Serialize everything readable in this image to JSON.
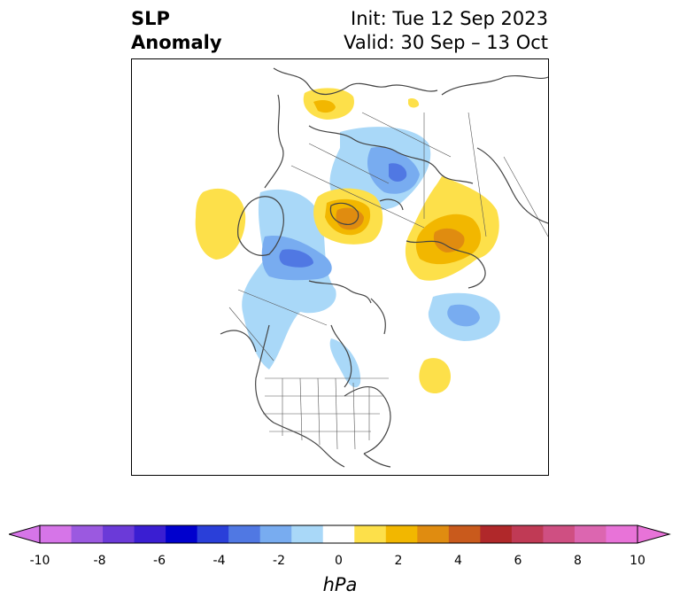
{
  "title": {
    "left_line1": "SLP",
    "left_line2": "Anomaly",
    "right_line1": "Init: Tue 12 Sep 2023",
    "right_line2": "Valid: 30 Sep – 13 Oct"
  },
  "colorbar": {
    "unit": "hPa",
    "ticks": [
      "-10",
      "-8",
      "-6",
      "-4",
      "-2",
      "0",
      "2",
      "4",
      "6",
      "8",
      "10"
    ],
    "tick_values": [
      -10,
      -8,
      -6,
      -4,
      -2,
      0,
      2,
      4,
      6,
      8,
      10
    ],
    "levels": [
      -10,
      -9,
      -8,
      -7,
      -6,
      -5,
      -4,
      -3,
      -2,
      -1,
      1,
      2,
      3,
      4,
      5,
      6,
      7,
      8,
      9,
      10
    ],
    "colors": [
      "#d675e8",
      "#9b59e0",
      "#6b3ad8",
      "#3a1ed2",
      "#0000cd",
      "#2a3fd9",
      "#5078e3",
      "#78acf0",
      "#a9d8f8",
      "#ffffff",
      "#fde04a",
      "#f2b700",
      "#e08c10",
      "#c95a1c",
      "#b0282a",
      "#c03a55",
      "#cf4f82",
      "#dc66b0",
      "#e873d8"
    ],
    "extend_low_color": "#d675e8",
    "extend_high_color": "#e873d8"
  },
  "anomalies": [
    {
      "name": "n-europe-high",
      "value": 1.5
    },
    {
      "name": "n-russia-high",
      "value": 1.2
    },
    {
      "name": "siberia-low",
      "value": -3
    },
    {
      "name": "arctic-high",
      "value": 4
    },
    {
      "name": "bering-high",
      "value": 3
    },
    {
      "name": "canada-low",
      "value": -3
    },
    {
      "name": "pacific-high",
      "value": 1.5
    },
    {
      "name": "atlantic-low",
      "value": -2.5
    },
    {
      "name": "hudson-low",
      "value": -1
    },
    {
      "name": "w-atlantic-high",
      "value": 1.5
    }
  ]
}
